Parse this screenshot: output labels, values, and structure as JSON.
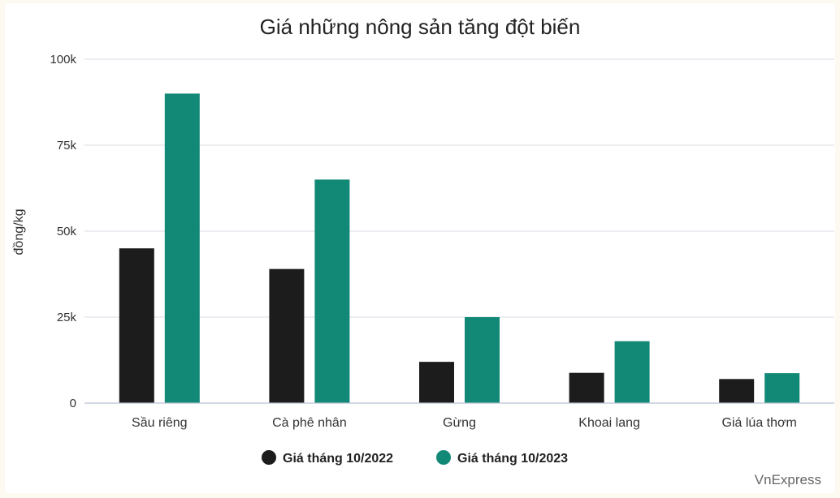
{
  "chart_data": {
    "type": "bar",
    "title": "Giá những nông sản tăng đột biến",
    "ylabel": "đồng/kg",
    "xlabel": "",
    "ylim": [
      0,
      100000
    ],
    "yticks": [
      0,
      25000,
      50000,
      75000,
      100000
    ],
    "ytick_labels": [
      "0",
      "25k",
      "50k",
      "75k",
      "100k"
    ],
    "categories": [
      "Sầu riêng",
      "Cà phê nhân",
      "Gừng",
      "Khoai lang",
      "Giá lúa thơm"
    ],
    "series": [
      {
        "name": "Giá tháng 10/2022",
        "color": "#1c1c1c",
        "values": [
          45000,
          39000,
          12000,
          8800,
          7000
        ]
      },
      {
        "name": "Giá tháng 10/2023",
        "color": "#128976",
        "values": [
          90000,
          65000,
          25000,
          18000,
          8700
        ]
      }
    ],
    "legend_position": "bottom",
    "grid": true
  },
  "credit": "VnExpress"
}
